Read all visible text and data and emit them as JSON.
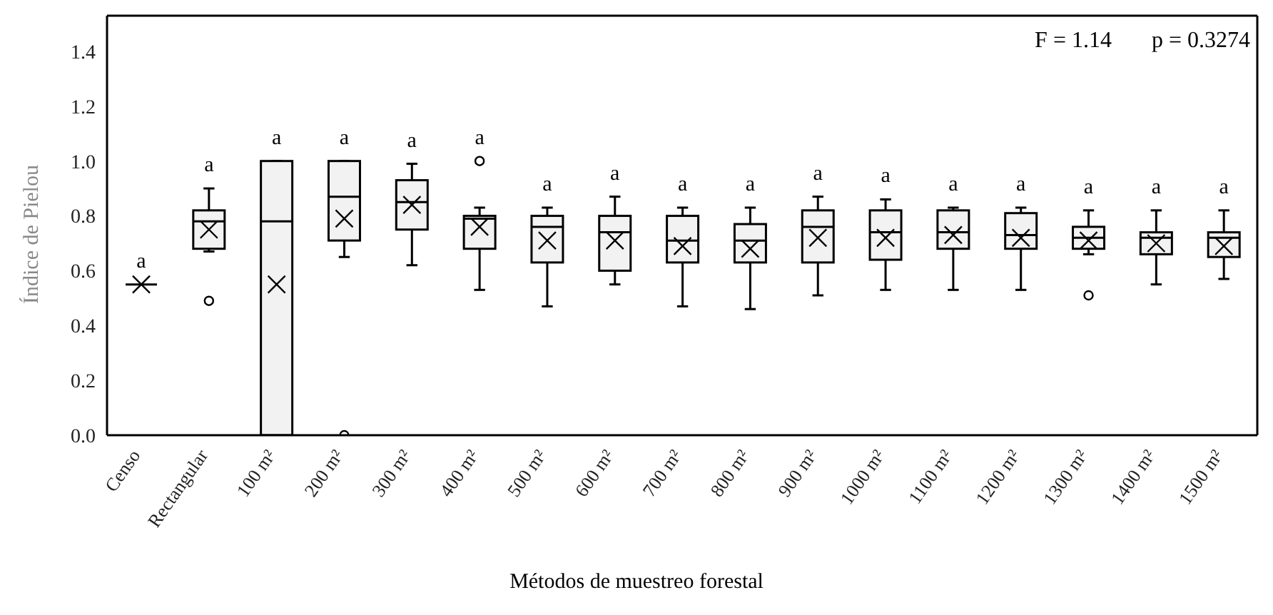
{
  "chart_data": {
    "type": "box",
    "xlabel": "Métodos de muestreo forestal",
    "ylabel": "Índice de Pielou",
    "categories": [
      "Censo",
      "Rectangular",
      "100 m²",
      "200 m²",
      "300 m²",
      "400 m²",
      "500 m²",
      "600 m²",
      "700 m²",
      "800 m²",
      "900 m²",
      "1000 m²",
      "1100 m²",
      "1200 m²",
      "1300 m²",
      "1400 m²",
      "1500 m²"
    ],
    "boxes": [
      {
        "low": 0.55,
        "q1": 0.55,
        "median": 0.55,
        "q3": 0.55,
        "high": 0.55,
        "mean": 0.55
      },
      {
        "low": 0.67,
        "q1": 0.68,
        "median": 0.78,
        "q3": 0.82,
        "high": 0.9,
        "mean": 0.75,
        "outliers": [
          0.49
        ]
      },
      {
        "low": 0.0,
        "q1": 0.0,
        "median": 0.78,
        "q3": 1.0,
        "high": 1.0,
        "mean": 0.55
      },
      {
        "low": 0.65,
        "q1": 0.71,
        "median": 0.87,
        "q3": 1.0,
        "high": 1.0,
        "mean": 0.79,
        "outliers": [
          0.0
        ]
      },
      {
        "low": 0.62,
        "q1": 0.75,
        "median": 0.85,
        "q3": 0.93,
        "high": 0.99,
        "mean": 0.84
      },
      {
        "low": 0.53,
        "q1": 0.68,
        "median": 0.79,
        "q3": 0.8,
        "high": 0.83,
        "mean": 0.76,
        "outliers": [
          1.0
        ]
      },
      {
        "low": 0.47,
        "q1": 0.63,
        "median": 0.76,
        "q3": 0.8,
        "high": 0.83,
        "mean": 0.71
      },
      {
        "low": 0.55,
        "q1": 0.6,
        "median": 0.74,
        "q3": 0.8,
        "high": 0.87,
        "mean": 0.71
      },
      {
        "low": 0.47,
        "q1": 0.63,
        "median": 0.71,
        "q3": 0.8,
        "high": 0.83,
        "mean": 0.69
      },
      {
        "low": 0.46,
        "q1": 0.63,
        "median": 0.71,
        "q3": 0.77,
        "high": 0.83,
        "mean": 0.68
      },
      {
        "low": 0.51,
        "q1": 0.63,
        "median": 0.76,
        "q3": 0.82,
        "high": 0.87,
        "mean": 0.72
      },
      {
        "low": 0.53,
        "q1": 0.64,
        "median": 0.74,
        "q3": 0.82,
        "high": 0.86,
        "mean": 0.72
      },
      {
        "low": 0.53,
        "q1": 0.68,
        "median": 0.74,
        "q3": 0.82,
        "high": 0.83,
        "mean": 0.73
      },
      {
        "low": 0.53,
        "q1": 0.68,
        "median": 0.73,
        "q3": 0.81,
        "high": 0.83,
        "mean": 0.72
      },
      {
        "low": 0.66,
        "q1": 0.68,
        "median": 0.72,
        "q3": 0.76,
        "high": 0.82,
        "mean": 0.71,
        "outliers": [
          0.51
        ]
      },
      {
        "low": 0.55,
        "q1": 0.66,
        "median": 0.72,
        "q3": 0.74,
        "high": 0.82,
        "mean": 0.7
      },
      {
        "low": 0.57,
        "q1": 0.65,
        "median": 0.72,
        "q3": 0.74,
        "high": 0.82,
        "mean": 0.69
      }
    ],
    "ylim": [
      0,
      1.53
    ],
    "yticks": [
      {
        "value": 0,
        "label": "0.0"
      },
      {
        "value": 0.2,
        "label": "0.2"
      },
      {
        "value": 0.4,
        "label": "0.4"
      },
      {
        "value": 0.6,
        "label": "0.6"
      },
      {
        "value": 0.8,
        "label": "0.8"
      },
      {
        "value": 1,
        "label": "1.0"
      },
      {
        "value": 1.2,
        "label": "1.2"
      },
      {
        "value": 1.4,
        "label": "1.4"
      }
    ],
    "annotations": [
      "F = 1.14",
      "p = 0.3274",
      "a",
      "a",
      "a",
      "a",
      "a",
      "a",
      "a",
      "a",
      "a",
      "a",
      "a",
      "a",
      "a",
      "a",
      "a",
      "a",
      "a"
    ]
  }
}
